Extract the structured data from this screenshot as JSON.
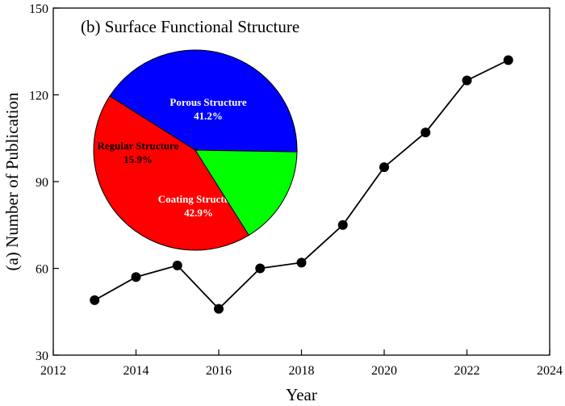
{
  "chart_data": [
    {
      "type": "line",
      "xlabel": "Year",
      "ylabel": "(a) Number of Publication",
      "xlim": [
        2012,
        2024
      ],
      "ylim": [
        30,
        150
      ],
      "xticks": [
        "2012",
        "2014",
        "2016",
        "2018",
        "2020",
        "2022",
        "2024"
      ],
      "yticks": [
        "30",
        "60",
        "90",
        "120",
        "150"
      ],
      "grid": false,
      "series": [
        {
          "marker": "circle",
          "color": "#000000",
          "x": [
            2013,
            2014,
            2015,
            2016,
            2017,
            2018,
            2019,
            2020,
            2021,
            2022,
            2023
          ],
          "y": [
            49,
            57,
            61,
            46,
            60,
            62,
            75,
            95,
            107,
            125,
            132
          ]
        }
      ]
    },
    {
      "type": "pie",
      "title": "(b) Surface Functional Structure",
      "slices": [
        {
          "label": "Porous Structure",
          "value": 41.2,
          "value_label": "41.2%",
          "color": "#0000ff",
          "text_color": "#ffffff"
        },
        {
          "label": "Coating Structure",
          "value": 42.9,
          "value_label": "42.9%",
          "color": "#ff0000",
          "text_color": "#ffffff"
        },
        {
          "label": "Regular Structure",
          "value": 15.9,
          "value_label": "15.9%",
          "color": "#00ff00",
          "text_color": "#000000"
        }
      ]
    }
  ]
}
